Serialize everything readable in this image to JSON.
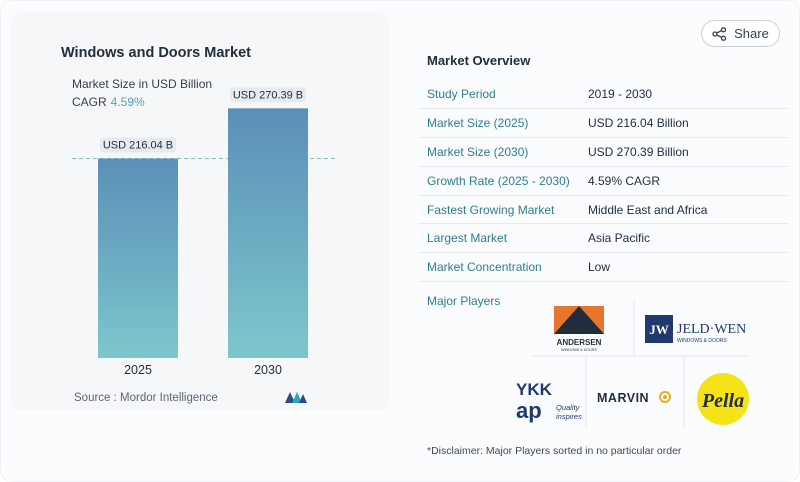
{
  "chart": {
    "title": "Windows and Doors Market",
    "subtitle": "Market Size in USD Billion",
    "cagr_label": "CAGR",
    "cagr_value": "4.59%",
    "source": "Source :  Mordor Intelligence"
  },
  "chart_data": {
    "type": "bar",
    "title": "Windows and Doors Market",
    "ylabel": "Market Size in USD Billion",
    "categories": [
      "2025",
      "2030"
    ],
    "values": [
      216.04,
      270.39
    ],
    "data_labels": [
      "USD 216.04 B",
      "USD 270.39 B"
    ],
    "ylim": [
      0,
      300
    ],
    "reference_line_value": 216.04,
    "colors": {
      "bar_top": "#5b8fb8",
      "bar_bottom": "#7cc7cc",
      "label_bg": "#e7ebef",
      "ref_line": "#7fbfc1"
    }
  },
  "share": {
    "label": "Share"
  },
  "overview": {
    "title": "Market Overview",
    "rows": [
      {
        "key": "Study Period",
        "value": "2019 - 2030"
      },
      {
        "key": "Market Size (2025)",
        "value": "USD 216.04 Billion"
      },
      {
        "key": "Market Size (2030)",
        "value": "USD 270.39 Billion"
      },
      {
        "key": "Growth Rate (2025 - 2030)",
        "value": "4.59% CAGR"
      },
      {
        "key": "Fastest Growing Market",
        "value": "Middle East and Africa"
      },
      {
        "key": "Largest Market",
        "value": "Asia Pacific"
      },
      {
        "key": "Market Concentration",
        "value": "Low"
      }
    ],
    "players_label": "Major Players",
    "players": {
      "andersen": {
        "name": "ANDERSEN",
        "tagline": "WINDOWS & DOORS"
      },
      "jeldwen": {
        "mark": "JW",
        "name": "JELD·WEN",
        "tagline": "WINDOWS & DOORS"
      },
      "ykk": {
        "line1": "YKK",
        "line2": "ap",
        "tagline1": "Quality",
        "tagline2": "inspires"
      },
      "marvin": {
        "name": "MARVIN"
      },
      "pella": {
        "name": "Pella"
      }
    },
    "disclaimer": "*Disclaimer: Major Players sorted in no particular order"
  },
  "colors": {
    "accent": "#2f7d93",
    "text": "#1f2d3d"
  }
}
